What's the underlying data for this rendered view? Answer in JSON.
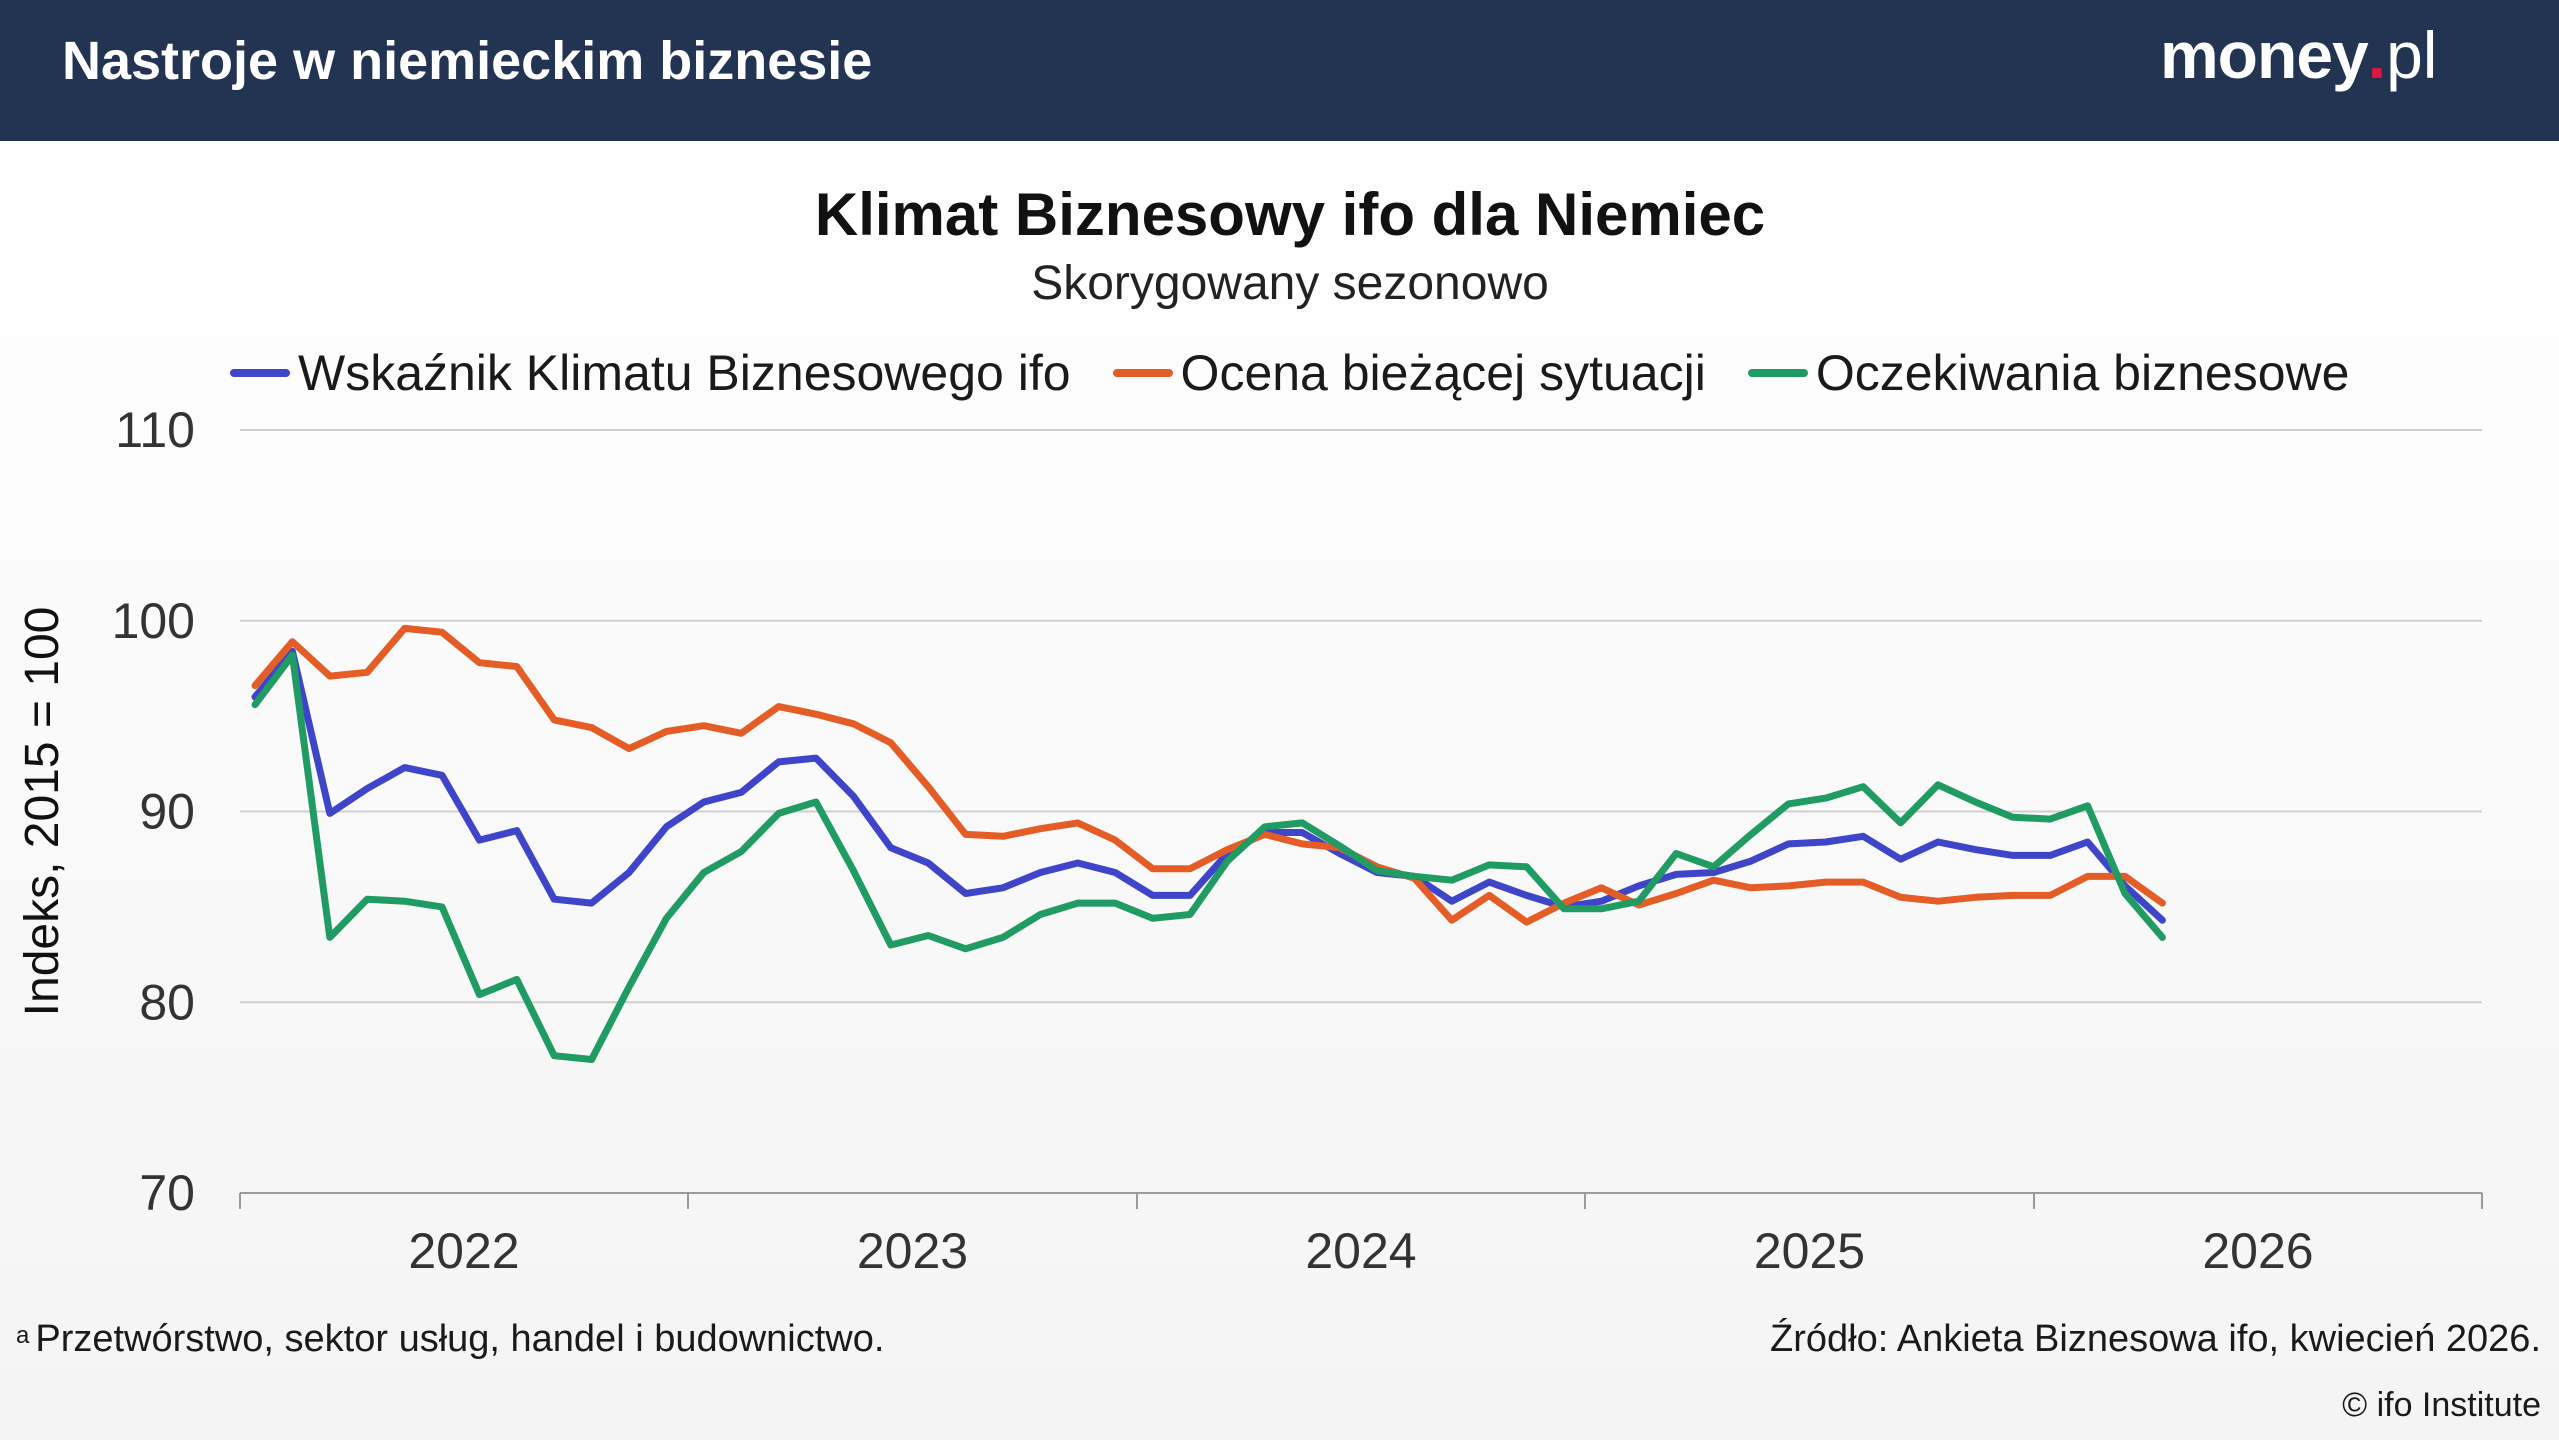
{
  "header": {
    "title": "Nastroje w niemieckim biznesie",
    "brand": {
      "main": "money",
      "dot": ".",
      "tld": "pl"
    }
  },
  "chart_data": {
    "type": "line",
    "title": "Klimat Biznesowy ifo dla Niemiec",
    "subtitle": "Skorygowany sezonowo",
    "ylabel": "Indeks, 2015 = 100",
    "xlabel": "",
    "ylim": [
      70,
      110
    ],
    "yticks": [
      "70",
      "80",
      "90",
      "100",
      "110"
    ],
    "xticks": [
      "2022",
      "2023",
      "2024",
      "2025",
      "2026"
    ],
    "grid": true,
    "legend_position": "top",
    "series": [
      {
        "name": "Wskaźnik Klimatu Biznesowego ifo",
        "color": "#3f45c8",
        "values": [
          96.0,
          98.4,
          89.9,
          91.2,
          92.3,
          91.9,
          88.5,
          89.0,
          85.4,
          85.2,
          86.8,
          89.2,
          90.5,
          91.0,
          92.6,
          92.8,
          90.8,
          88.1,
          87.3,
          85.7,
          86.0,
          86.8,
          87.3,
          86.8,
          85.6,
          85.6,
          87.8,
          88.9,
          88.9,
          87.8,
          86.8,
          86.6,
          85.3,
          86.3,
          85.6,
          85.0,
          85.3,
          86.1,
          86.7,
          86.8,
          87.4,
          88.3,
          88.4,
          88.7,
          87.5,
          88.4,
          88.0,
          87.7,
          87.7,
          88.4,
          86.1,
          84.3
        ]
      },
      {
        "name": "Ocena bieżącej sytuacji",
        "color": "#e45d27",
        "values": [
          96.6,
          98.9,
          97.1,
          97.3,
          99.6,
          99.4,
          97.8,
          97.6,
          94.8,
          94.4,
          93.3,
          94.2,
          94.5,
          94.1,
          95.5,
          95.1,
          94.6,
          93.6,
          91.3,
          88.8,
          88.7,
          89.1,
          89.4,
          88.5,
          87.0,
          87.0,
          88.0,
          88.8,
          88.3,
          88.1,
          87.1,
          86.5,
          84.3,
          85.6,
          84.2,
          85.2,
          86.0,
          85.1,
          85.7,
          86.4,
          86.0,
          86.1,
          86.3,
          86.3,
          85.5,
          85.3,
          85.5,
          85.6,
          85.6,
          86.6,
          86.6,
          85.2
        ]
      },
      {
        "name": "Oczekiwania biznesowe",
        "color": "#1f9b63",
        "values": [
          95.6,
          98.2,
          83.4,
          85.4,
          85.3,
          85.0,
          80.4,
          81.2,
          77.2,
          77.0,
          80.8,
          84.4,
          86.8,
          87.9,
          89.9,
          90.5,
          86.9,
          83.0,
          83.5,
          82.8,
          83.4,
          84.6,
          85.2,
          85.2,
          84.4,
          84.6,
          87.4,
          89.2,
          89.4,
          88.2,
          86.9,
          86.6,
          86.4,
          87.2,
          87.1,
          84.9,
          84.9,
          85.3,
          87.8,
          87.1,
          88.8,
          90.4,
          90.7,
          91.3,
          89.4,
          91.4,
          90.5,
          89.7,
          89.6,
          90.3,
          85.7,
          83.4
        ]
      }
    ],
    "x_start": "2021-09",
    "x_step": "month"
  },
  "footer": {
    "footnote_mark": "a",
    "footnote": "Przetwórstwo, sektor usług, handel i budownictwo.",
    "source": "Źródło: Ankieta Biznesowa ifo, kwiecień 2026.",
    "copyright": "© ifo Institute"
  }
}
